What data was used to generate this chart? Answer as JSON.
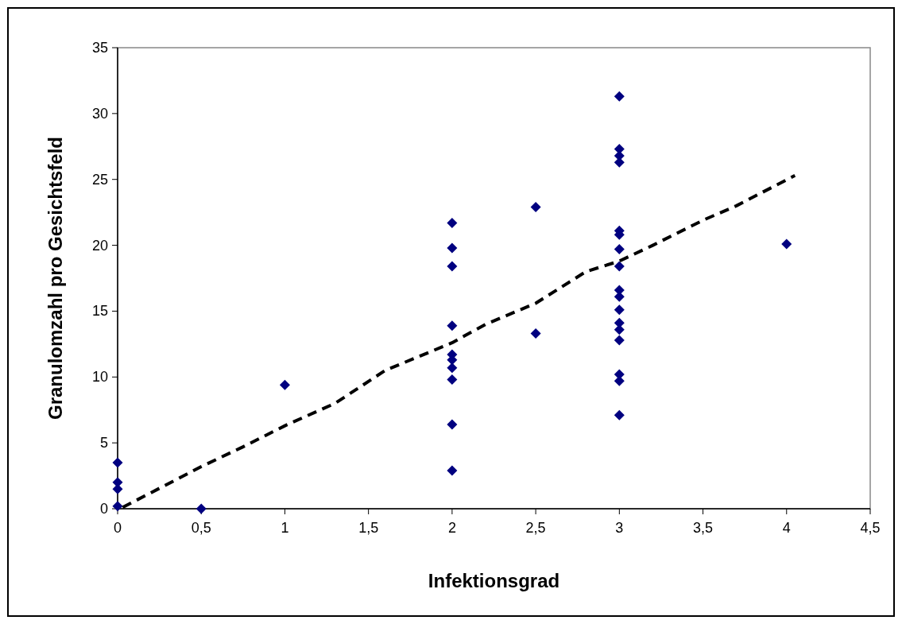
{
  "chart_data": {
    "type": "scatter",
    "xlabel": "Infektionsgrad",
    "ylabel": "Granulomzahl pro Gesichtsfeld",
    "xlim": [
      0,
      4.5
    ],
    "xticks": [
      {
        "value": 0,
        "label": "0"
      },
      {
        "value": 0.5,
        "label": "0,5"
      },
      {
        "value": 1,
        "label": "1"
      },
      {
        "value": 1.5,
        "label": "1,5"
      },
      {
        "value": 2,
        "label": "2"
      },
      {
        "value": 2.5,
        "label": "2,5"
      },
      {
        "value": 3,
        "label": "3"
      },
      {
        "value": 3.5,
        "label": "3,5"
      },
      {
        "value": 4,
        "label": "4"
      },
      {
        "value": 4.5,
        "label": "4,5"
      }
    ],
    "ylim": [
      0,
      35
    ],
    "yticks": [
      0,
      5,
      10,
      15,
      20,
      25,
      30,
      35
    ],
    "grid": false,
    "series": [
      {
        "color": "#000080",
        "marker": "diamond",
        "x": [
          0,
          0,
          0,
          0,
          0.5,
          1,
          2,
          2,
          2,
          2,
          2,
          2,
          2,
          2,
          2,
          2,
          2.5,
          2.5,
          3,
          3,
          3,
          3,
          3,
          3,
          3,
          3,
          3,
          3,
          3,
          3,
          3,
          3,
          3,
          3,
          3,
          4
        ],
        "values": [
          3.5,
          2,
          1.5,
          0.2,
          0,
          9.4,
          21.7,
          19.8,
          18.4,
          13.9,
          11.7,
          11.3,
          10.7,
          9.8,
          6.4,
          2.9,
          22.9,
          13.3,
          31.3,
          27.3,
          26.8,
          26.3,
          21.1,
          20.8,
          19.7,
          18.4,
          16.6,
          16.1,
          15.1,
          14.1,
          13.6,
          12.8,
          10.2,
          9.7,
          7.1,
          20.1
        ]
      },
      {
        "type": "line",
        "color": "#000000",
        "line_style": "dashed",
        "marker": "none",
        "x": [
          0.03,
          0.5,
          0.75,
          1,
          1.3,
          1.6,
          2,
          2.2,
          2.5,
          2.8,
          3,
          3.2,
          3.5,
          3.7,
          4.05
        ],
        "values": [
          0.1,
          3.2,
          4.7,
          6.3,
          8,
          10.5,
          12.6,
          14,
          15.6,
          18,
          18.8,
          20,
          21.9,
          23,
          25.3
        ]
      }
    ]
  }
}
